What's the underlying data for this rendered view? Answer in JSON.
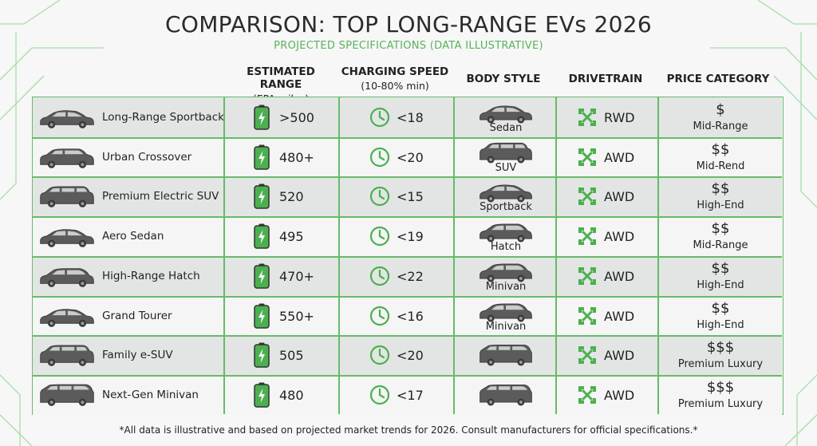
{
  "title": "COMPARISON: TOP LONG-RANGE EVs 2026",
  "subtitle": "PROJECTED SPECIFICATIONS (DATA ILLUSTRATIVE)",
  "colors": {
    "accent": "#4caf50",
    "border": "#66bb6a",
    "subtitle": "#58b35a",
    "car": "#555555"
  },
  "headers": {
    "range": {
      "title": "ESTIMATED RANGE",
      "sub": "(EPA miles)"
    },
    "charging": {
      "title": "CHARGING SPEED",
      "sub": "(10-80% min)"
    },
    "body": {
      "title": "BODY STYLE"
    },
    "drivetrain": {
      "title": "DRIVETRAIN"
    },
    "price": {
      "title": "PRICE CATEGORY"
    }
  },
  "chart_data": {
    "type": "table",
    "columns": [
      "",
      "ESTIMATED RANGE (EPA miles)",
      "CHARGING SPEED (10-80% min)",
      "BODY STYLE",
      "DRIVETRAIN",
      "PRICE CATEGORY"
    ],
    "rows": [
      {
        "model": "Long-Range Sportback",
        "range": ">500",
        "charging": "<18",
        "body": "Sedan",
        "drivetrain": "RWD",
        "price_symbol": "$",
        "price_category": "Mid-Range",
        "car_icon": "sedan-icon",
        "body_icon": "sedan-icon"
      },
      {
        "model": "Urban Crossover",
        "range": "480+",
        "charging": "<20",
        "body": "SUV",
        "drivetrain": "AWD",
        "price_symbol": "$$",
        "price_category": "Mid-Rend",
        "car_icon": "crossover-icon",
        "body_icon": "suv-icon"
      },
      {
        "model": "Premium Electric SUV",
        "range": "520",
        "charging": "<15",
        "body": "Sportback",
        "drivetrain": "AWD",
        "price_symbol": "$$",
        "price_category": "High-End",
        "car_icon": "suv-icon",
        "body_icon": "sedan-icon"
      },
      {
        "model": "Aero Sedan",
        "range": "495",
        "charging": "<19",
        "body": "Hatch",
        "drivetrain": "AWD",
        "price_symbol": "$$",
        "price_category": "Mid-Range",
        "car_icon": "sedan-icon",
        "body_icon": "hatch-icon"
      },
      {
        "model": "High-Range Hatch",
        "range": "470+",
        "charging": "<22",
        "body": "Minivan",
        "drivetrain": "AWD",
        "price_symbol": "$$",
        "price_category": "High-End",
        "car_icon": "hatch-icon",
        "body_icon": "hatch-icon"
      },
      {
        "model": "Grand Tourer",
        "range": "550+",
        "charging": "<16",
        "body": "Minivan",
        "drivetrain": "AWD",
        "price_symbol": "$$",
        "price_category": "High-End",
        "car_icon": "sedan-icon",
        "body_icon": "hatch-icon"
      },
      {
        "model": "Family e-SUV",
        "range": "505",
        "charging": "<20",
        "body": "",
        "drivetrain": "AWD",
        "price_symbol": "$$$",
        "price_category": "Premium Luxury",
        "car_icon": "suv-icon",
        "body_icon": "minivan-icon"
      },
      {
        "model": "Next-Gen Minivan",
        "range": "480",
        "charging": "<17",
        "body": "",
        "drivetrain": "AWD",
        "price_symbol": "$$$",
        "price_category": "Premium Luxury",
        "car_icon": "minivan-icon",
        "body_icon": "minivan-icon"
      }
    ]
  },
  "footnote": "*All data is illustrative and based on projected market trends for 2026. Consult manufacturers for official specifications.*"
}
